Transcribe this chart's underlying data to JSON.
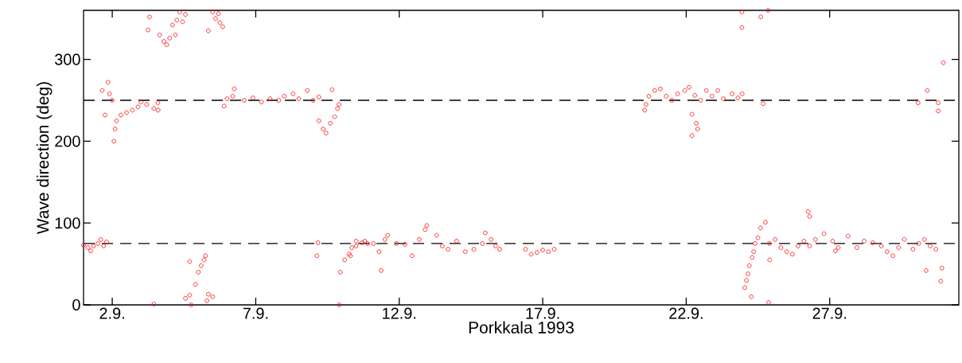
{
  "chart_data": {
    "type": "scatter",
    "xlabel": "Porkkala 1993",
    "ylabel": "Wave direction (deg)",
    "marker": "circle",
    "xlim": [
      "1993-09-01",
      "1993-10-01T12:00"
    ],
    "ylim": [
      0,
      360
    ],
    "xticks": [
      {
        "value": "1993-09-02",
        "label": "2.9."
      },
      {
        "value": "1993-09-07",
        "label": "7.9."
      },
      {
        "value": "1993-09-12",
        "label": "12.9."
      },
      {
        "value": "1993-09-17",
        "label": "17.9."
      },
      {
        "value": "1993-09-22",
        "label": "22.9."
      },
      {
        "value": "1993-09-27",
        "label": "27.9."
      }
    ],
    "yticks": [
      0,
      100,
      200,
      300
    ],
    "ref_lines": [
      {
        "axis": "y",
        "value": 250,
        "color": "#000000",
        "line_style": "dashed"
      },
      {
        "axis": "y",
        "value": 75,
        "color": "#000000",
        "line_style": "dashed"
      }
    ],
    "series": [
      {
        "color": "#ff0000",
        "x": [
          "1993-09-01T00:00",
          "1993-09-01T03:36",
          "1993-09-01T06:00",
          "1993-09-01T08:24",
          "1993-09-01T12:00",
          "1993-09-01T14:24",
          "1993-09-01T16:48",
          "1993-09-01T19:12",
          "1993-09-01T15:36",
          "1993-09-01T20:24",
          "1993-09-01T21:36",
          "1993-09-02T00:00",
          "1993-09-01T18:00",
          "1993-09-02T01:26",
          "1993-09-02T02:24",
          "1993-09-02T03:36",
          "1993-09-02T07:12",
          "1993-09-02T12:00",
          "1993-09-02T16:48",
          "1993-09-02T21:36",
          "1993-09-03T00:00",
          "1993-09-03T04:48",
          "1993-09-03T10:48",
          "1993-09-03T14:10",
          "1993-09-03T14:24",
          "1993-09-03T07:12",
          "1993-09-03T06:00",
          "1993-09-03T15:36",
          "1993-09-03T19:12",
          "1993-09-03T21:36",
          "1993-09-04T00:00",
          "1993-09-04T02:24",
          "1993-09-04T06:00",
          "1993-09-04T08:24",
          "1993-09-04T10:48",
          "1993-09-04T13:12",
          "1993-09-04T04:48",
          "1993-09-05T08:24",
          "1993-09-05T12:00",
          "1993-09-05T14:24",
          "1993-09-05T18:00",
          "1993-09-05T20:24",
          "1993-09-05T16:48",
          "1993-09-03T10:48",
          "1993-09-04T13:12",
          "1993-09-04T16:48",
          "1993-09-04T18:00",
          "1993-09-04T21:36",
          "1993-09-05T00:00",
          "1993-09-05T02:24",
          "1993-09-05T04:48",
          "1993-09-04T16:48",
          "1993-09-05T06:00",
          "1993-09-05T08:24",
          "1993-09-05T12:00",
          "1993-09-05T07:12",
          "1993-09-05T21:36",
          "1993-09-06T00:00",
          "1993-09-06T04:48",
          "1993-09-06T06:00",
          "1993-09-06T14:24",
          "1993-09-06T21:36",
          "1993-09-07T04:48",
          "1993-09-07T12:00",
          "1993-09-07T19:12",
          "1993-09-08T00:00",
          "1993-09-08T07:12",
          "1993-09-08T12:00",
          "1993-09-08T19:12",
          "1993-09-09T00:00",
          "1993-09-09T04:48",
          "1993-09-09T04:48",
          "1993-09-09T08:24",
          "1993-09-09T10:48",
          "1993-09-09T14:24",
          "1993-09-09T18:00",
          "1993-09-09T20:24",
          "1993-09-09T21:36",
          "1993-09-09T15:50",
          "1993-09-09T04:05",
          "1993-09-09T03:07",
          "1993-09-09T21:50",
          "1993-09-09T22:48",
          "1993-09-10T02:24",
          "1993-09-10T06:00",
          "1993-09-10T08:24",
          "1993-09-10T12:00",
          "1993-09-10T16:48",
          "1993-09-10T21:36",
          "1993-09-10T07:12",
          "1993-09-10T12:00",
          "1993-09-10T19:12",
          "1993-09-11T02:24",
          "1993-09-11T07:12",
          "1993-09-11T08:53",
          "1993-09-11T12:00",
          "1993-09-11T14:24",
          "1993-09-11T21:36",
          "1993-09-12T04:48",
          "1993-09-12T10:48",
          "1993-09-12T16:48",
          "1993-09-12T21:36",
          "1993-09-12T23:02",
          "1993-09-13T07:12",
          "1993-09-13T12:00",
          "1993-09-13T16:48",
          "1993-09-14T00:00",
          "1993-09-14T07:12",
          "1993-09-14T14:24",
          "1993-09-14T21:36",
          "1993-09-15T00:00",
          "1993-09-15T04:48",
          "1993-09-15T08:38",
          "1993-09-15T12:00",
          "1993-09-16T09:36",
          "1993-09-16T14:24",
          "1993-09-16T19:12",
          "1993-09-17T00:00",
          "1993-09-17T04:48",
          "1993-09-17T09:36",
          "1993-09-20T13:12",
          "1993-09-20T14:24",
          "1993-09-20T16:48",
          "1993-09-20T21:36",
          "1993-09-21T02:24",
          "1993-09-21T07:12",
          "1993-09-21T12:00",
          "1993-09-21T16:48",
          "1993-09-21T22:48",
          "1993-09-22T02:24",
          "1993-09-22T07:12",
          "1993-09-22T12:00",
          "1993-09-22T16:48",
          "1993-09-22T21:36",
          "1993-09-23T02:24",
          "1993-09-23T07:12",
          "1993-09-23T14:24",
          "1993-09-23T19:12",
          "1993-09-23T22:48",
          "1993-09-22T04:48",
          "1993-09-22T08:24",
          "1993-09-22T09:36",
          "1993-09-22T04:48",
          "1993-09-24T16:19",
          "1993-09-23T22:34",
          "1993-09-23T22:34",
          "1993-09-24T14:24",
          "1993-09-24T20:24",
          "1993-09-30T01:55",
          "1993-09-30T09:36",
          "1993-09-30T18:43",
          "1993-09-30T18:43",
          "1993-09-30T23:02",
          "1993-09-24T00:58",
          "1993-09-24T06:29",
          "1993-09-24T02:24",
          "1993-09-24T03:36",
          "1993-09-24T04:48",
          "1993-09-24T07:12",
          "1993-09-24T08:24",
          "1993-09-24T09:36",
          "1993-09-24T12:00",
          "1993-09-24T14:10",
          "1993-09-24T18:14",
          "1993-09-24T20:53",
          "1993-09-24T21:50",
          "1993-09-24T21:36",
          "1993-09-25T02:24",
          "1993-09-25T07:12",
          "1993-09-25T12:00",
          "1993-09-25T16:48",
          "1993-09-25T21:36",
          "1993-09-26T02:24",
          "1993-09-26T07:12",
          "1993-09-26T12:00",
          "1993-09-26T06:00",
          "1993-09-26T07:12",
          "1993-09-26T19:12",
          "1993-09-27T02:24",
          "1993-09-27T04:48",
          "1993-09-27T07:12",
          "1993-09-27T15:22",
          "1993-09-27T22:48",
          "1993-09-28T04:48",
          "1993-09-28T12:00",
          "1993-09-28T19:12",
          "1993-09-29T00:00",
          "1993-09-29T04:48",
          "1993-09-29T09:36",
          "1993-09-29T14:24",
          "1993-09-29T21:36",
          "1993-09-30T02:24",
          "1993-09-30T07:12",
          "1993-09-30T12:00",
          "1993-09-30T16:48",
          "1993-09-30T08:38",
          "1993-09-30T20:53",
          "1993-09-30T21:50"
        ],
        "values": [
          73,
          70,
          66,
          72,
          75,
          80,
          72,
          77,
          262,
          272,
          258,
          250,
          232,
          200,
          215,
          225,
          232,
          235,
          238,
          242,
          248,
          245,
          240,
          247,
          238,
          352,
          336,
          330,
          322,
          318,
          326,
          342,
          348,
          358,
          346,
          355,
          330,
          335,
          358,
          350,
          345,
          340,
          356,
          1,
          8,
          12,
          0,
          25,
          40,
          48,
          55,
          53,
          60,
          13,
          10,
          5,
          243,
          252,
          255,
          264,
          250,
          253,
          248,
          252,
          250,
          255,
          258,
          252,
          262,
          250,
          254,
          225,
          215,
          210,
          222,
          230,
          240,
          245,
          263,
          76,
          60,
          0,
          40,
          55,
          62,
          70,
          78,
          76,
          75,
          60,
          72,
          78,
          75,
          65,
          42,
          80,
          85,
          75,
          74,
          60,
          80,
          92,
          97,
          85,
          72,
          68,
          78,
          65,
          68,
          75,
          88,
          80,
          72,
          68,
          68,
          62,
          64,
          67,
          65,
          68,
          238,
          245,
          255,
          262,
          264,
          255,
          250,
          258,
          262,
          266,
          256,
          250,
          262,
          255,
          262,
          252,
          258,
          253,
          258,
          233,
          222,
          215,
          207,
          246,
          358,
          339,
          352,
          360,
          247,
          262,
          237,
          247,
          296,
          21,
          10,
          30,
          38,
          48,
          58,
          65,
          75,
          82,
          94,
          101,
          3,
          55,
          75,
          80,
          70,
          65,
          62,
          72,
          78,
          72,
          80,
          114,
          108,
          87,
          78,
          66,
          70,
          84,
          70,
          78,
          76,
          72,
          65,
          60,
          70,
          80,
          68,
          75,
          80,
          72,
          68,
          42,
          29,
          45
        ]
      }
    ]
  }
}
